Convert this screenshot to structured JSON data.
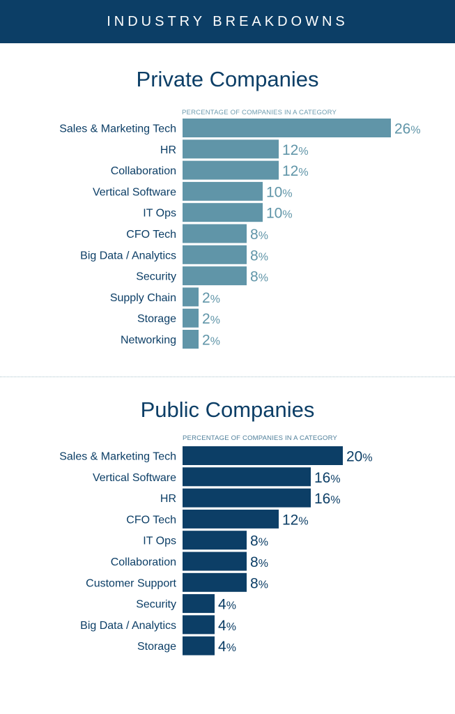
{
  "header": {
    "title": "INDUSTRY BREAKDOWNS"
  },
  "chart_data": [
    {
      "type": "bar",
      "title": "Private Companies",
      "subtitle": "PERCENTAGE OF COMPANIES IN A CATEGORY",
      "orientation": "horizontal",
      "unit": "%",
      "color": "#6095a8",
      "categories": [
        "Sales & Marketing Tech",
        "HR",
        "Collaboration",
        "Vertical Software",
        "IT Ops",
        "CFO Tech",
        "Big Data / Analytics",
        "Security",
        "Supply Chain",
        "Storage",
        "Networking"
      ],
      "values": [
        26,
        12,
        12,
        10,
        10,
        8,
        8,
        8,
        2,
        2,
        2
      ]
    },
    {
      "type": "bar",
      "title": "Public Companies",
      "subtitle": "PERCENTAGE OF COMPANIES IN A CATEGORY",
      "orientation": "horizontal",
      "unit": "%",
      "color": "#0c3e66",
      "categories": [
        "Sales & Marketing Tech",
        "Vertical Software",
        "HR",
        "CFO Tech",
        "IT Ops",
        "Collaboration",
        "Customer Support",
        "Security",
        "Big Data / Analytics",
        "Storage"
      ],
      "values": [
        20,
        16,
        16,
        12,
        8,
        8,
        8,
        4,
        4,
        4
      ]
    }
  ]
}
